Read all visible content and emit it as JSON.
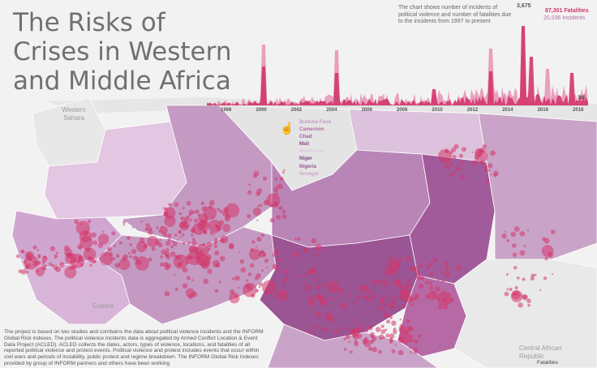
{
  "title": "The Risks of Crises in Western and Middle Africa",
  "description_top": "The chart shows number of incidents of political violence and number of fatalities due to the incidents from 1997 to present",
  "peak_value": "3,675",
  "stats": {
    "fatalities": "87,301 Fatalities",
    "incidents": "20,036 Incidents"
  },
  "end_value": "385",
  "years": [
    "1998",
    "2000",
    "2002",
    "2004",
    "2006",
    "2008",
    "2010",
    "2012",
    "2014",
    "2016",
    "2018"
  ],
  "legend": [
    {
      "label": "Burkina Faso",
      "color": "#c49ac2"
    },
    {
      "label": "Cameroon",
      "color": "#b56aa6"
    },
    {
      "label": "Chad",
      "color": "#a25b9a"
    },
    {
      "label": "Mali",
      "color": "#8e4a8a"
    },
    {
      "label": "Mauritania",
      "color": "#e2c6e2"
    },
    {
      "label": "Niger",
      "color": "#7c447e"
    },
    {
      "label": "Nigeria",
      "color": "#9b5494"
    },
    {
      "label": "Senegal",
      "color": "#cfa6cf"
    }
  ],
  "body_text": "The project is based on two studies and combains the data about political violence incidents and the INFORM Global Risk indexes. The political violence incidents data is aggregated by Armed Conflict Location & Event Data Project (ACLED). ACLED collects the dates, actors, types of violence, locations, and fatalities of all reported political violence and protest events. Political violence and protest includes events that occur within civil wars and periods of instability, public protest and regime breakdown. The INFORM Global Risk Indexes provided by group of INFORM partners and others have been working",
  "map_labels": {
    "western_sahara": "Western Sahara",
    "guinea": "Guinea",
    "car": "Central African Republic"
  },
  "fatalities_label": "Fatalities",
  "colors": {
    "accent": "#d3366a",
    "incidents": "#e890b4",
    "map_base": "#c9a3c8",
    "ocean": "#f2f2f2"
  }
}
